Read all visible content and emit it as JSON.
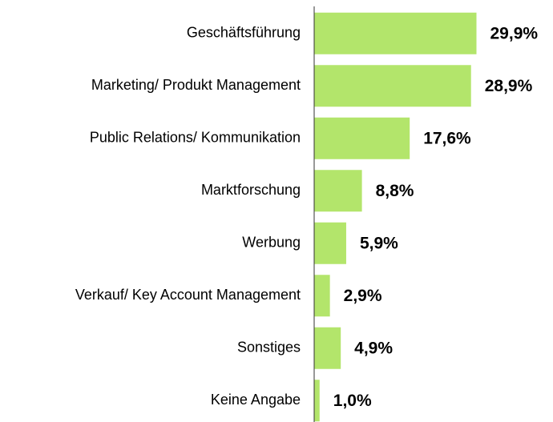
{
  "chart_data": {
    "type": "barh",
    "categories": [
      "Geschäftsführung",
      "Marketing/ Produkt Management",
      "Public Relations/ Kommunikation",
      "Marktforschung",
      "Werbung",
      "Verkauf/ Key Account Management",
      "Sonstiges",
      "Keine Angabe"
    ],
    "values": [
      29.9,
      28.9,
      17.6,
      8.8,
      5.9,
      2.9,
      4.9,
      1.0
    ],
    "value_labels": [
      "29,9%",
      "28,9%",
      "17,6%",
      "8,8%",
      "5,9%",
      "2,9%",
      "4,9%",
      "1,0%"
    ],
    "color": "#b3e56b",
    "xlim": [
      0,
      44
    ]
  }
}
